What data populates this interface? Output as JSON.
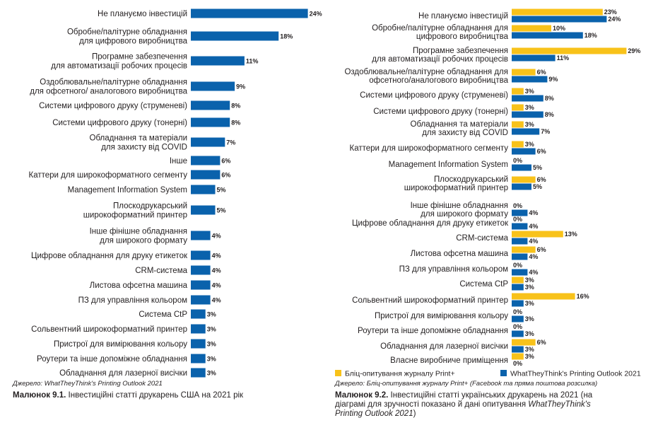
{
  "colors": {
    "blue": "#0a62ac",
    "yellow": "#f8c21a"
  },
  "chart_data": [
    {
      "type": "bar",
      "orientation": "horizontal",
      "categories": [
        "Не плануємо інвестицій",
        "Обробне/палітурне обладнання|для цифрового виробництва",
        "Програмне забезпечення|для автоматизації робочих процесів",
        "Оздоблювальне/палітурне обладнання|для офсетного/ аналогового виробництва",
        "Системи цифрового друку (струменеві)",
        "Системи цифрового друку (тонерні)",
        "Обладнання та матеріали|для захисту від COVID",
        "Інше",
        "Каттери для широкоформатного сегменту",
        "Management Information System",
        "Плоскодрукарський|широкоформатний принтер",
        "Інше фінішне обладнання|для широкого формату",
        "Цифрове обладнання для друку етикеток",
        "CRM-система",
        "Листова офсетна машина",
        "ПЗ для управління кольором",
        "Система CtP",
        "Сольвентний широкоформатний принтер",
        "Пристрої для вимірювання кольору",
        "Роутери та інше допоміжне обладнання",
        "Обладнання для лазерної висічки"
      ],
      "series": [
        {
          "values": [
            24,
            18,
            11,
            9,
            8,
            8,
            7,
            6,
            6,
            5,
            5,
            4,
            4,
            4,
            4,
            4,
            3,
            3,
            3,
            3,
            3
          ],
          "color": "#0a62ac"
        }
      ],
      "value_labels": [
        "24%",
        "18%",
        "11%",
        "9%",
        "8%",
        "8%",
        "7%",
        "6%",
        "6%",
        "5%",
        "5%",
        "4%",
        "4%",
        "4%",
        "4%",
        "4%",
        "3%",
        "3%",
        "3%",
        "3%",
        "3%"
      ],
      "source": "Джерело: WhatTheyThink's Printing Outlook 2021",
      "caption_num": "Малюнок 9.1.",
      "caption_text": " Інвестиційні статті друкарень США на 2021 рік"
    },
    {
      "type": "bar",
      "orientation": "horizontal",
      "categories": [
        "Не плануємо інвестицій",
        "Обробне/палітурне обладнання для|цифрового виробництва",
        "Програмне забезпечення|для автоматизації робочих процесів",
        "Оздоблювальне/палітурне обладнання для|офсетного/аналогового виробництва",
        "Системи цифрового друку (струменеві)",
        "Системи цифрового друку (тонерні)",
        "Обладнання та матеріали|для захисту від COVID",
        "Каттери для широкоформатного сегменту",
        "Management Information System",
        "Плоскодрукарський|широкоформатний принтер",
        "Інше фінішне обладнання|для широкого формату",
        "Цифрове обладнання для друку етикеток",
        "CRM-система",
        "Листова офсетна машина",
        "ПЗ для управління кольором",
        "Система CtP",
        "Сольвентний широкоформатний принтер",
        "Пристрої для вимірювання кольору",
        "Роутери та інше допоміжне обладнання",
        "Обладнання для лазерної висічки",
        "Власне виробниче приміщення"
      ],
      "series": [
        {
          "name": "Бліц-опитування журналу Print+",
          "color": "#f8c21a",
          "values": [
            23,
            10,
            29,
            6,
            3,
            3,
            3,
            3,
            0,
            6,
            0,
            0,
            13,
            6,
            0,
            3,
            16,
            0,
            0,
            6,
            3
          ],
          "labels": [
            "23%",
            "10%",
            "29%",
            "6%",
            "3%",
            "3%",
            "3%",
            "3%",
            "0%",
            "6%",
            "0%",
            "0%",
            "13%",
            "6%",
            "0%",
            "3%",
            "16%",
            "0%",
            "0%",
            "6%",
            "3%"
          ]
        },
        {
          "name": "WhatTheyThink's Printing Outlook 2021",
          "color": "#0a62ac",
          "values": [
            24,
            18,
            11,
            9,
            8,
            8,
            7,
            6,
            5,
            5,
            4,
            4,
            4,
            4,
            4,
            3,
            3,
            3,
            3,
            3,
            0
          ],
          "labels": [
            "24%",
            "18%",
            "11%",
            "9%",
            "8%",
            "8%",
            "7%",
            "6%",
            "5%",
            "5%",
            "4%",
            "4%",
            "4%",
            "4%",
            "4%",
            "3%",
            "3%",
            "3%",
            "3%",
            "3%",
            "0%"
          ]
        }
      ],
      "legend_position": "bottom",
      "source": "Джерело: Бліц-опитування журналу Print+ (Facebook та пряма поштова розсилка)",
      "caption_num": "Малюнок 9.2.",
      "caption_text_1": " Інвестиційні статті українських друкарень на 2021 (на",
      "caption_text_2": "діаграмі для зручності показано й дані опитування ",
      "caption_italic_2": "WhatTheyThink's",
      "caption_italic_3": "Printing Outlook 2021",
      "caption_text_3": ")"
    }
  ]
}
